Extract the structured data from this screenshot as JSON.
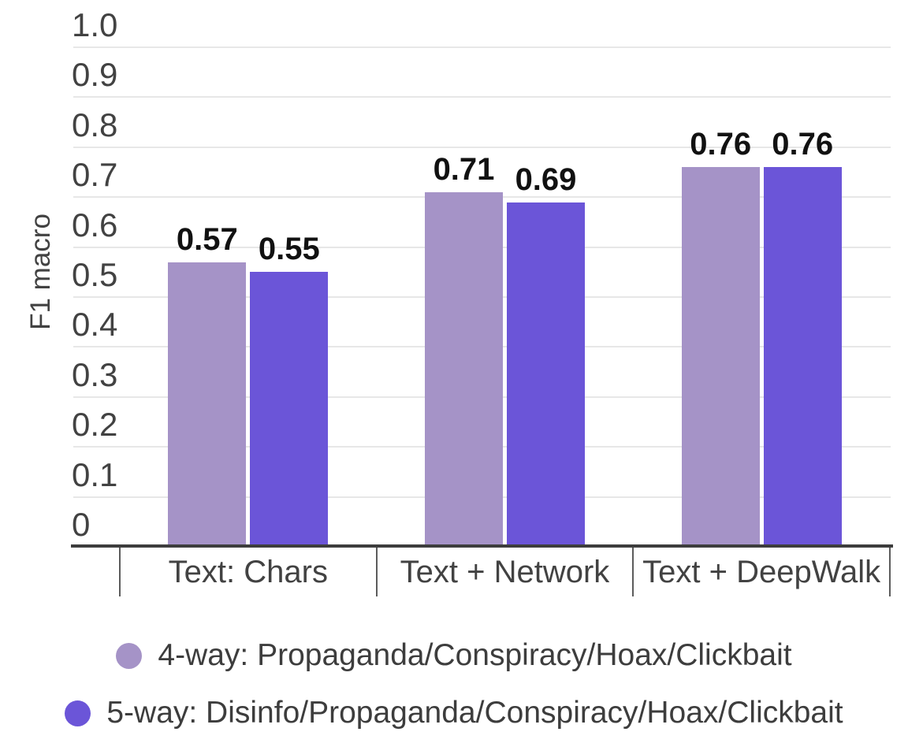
{
  "chart_data": {
    "type": "bar",
    "title": "",
    "xlabel": "",
    "ylabel": "F1 macro",
    "categories": [
      "Text: Chars",
      "Text + Network",
      "Text + DeepWalk"
    ],
    "series": [
      {
        "name": "4-way: Propaganda/Conspiracy/Hoax/Clickbait",
        "color": "#a593c7",
        "values": [
          0.57,
          0.71,
          0.76
        ],
        "labels": [
          "0.57",
          "0.71",
          "0.76"
        ]
      },
      {
        "name": "5-way: Disinfo/Propaganda/Conspiracy/Hoax/Clickbait",
        "color": "#6b55d8",
        "values": [
          0.55,
          0.69,
          0.76
        ],
        "labels": [
          "0.55",
          "0.69",
          "0.76"
        ]
      }
    ],
    "ylim": [
      0,
      1.0
    ],
    "ytick_labels": [
      "0",
      "0.1",
      "0.2",
      "0.3",
      "0.4",
      "0.5",
      "0.6",
      "0.7",
      "0.8",
      "0.9",
      "1.0"
    ],
    "grid": true,
    "legend_position": "bottom",
    "annotations_shown": true
  },
  "colors": {
    "axis_line": "#3d3d3d",
    "tick_line": "#5c5c5c",
    "gridline": "#e7e7e7",
    "axis_text": "#424242",
    "annotation_text": "#111111",
    "legend_text": "#3d3d3d",
    "background": "#ffffff"
  }
}
